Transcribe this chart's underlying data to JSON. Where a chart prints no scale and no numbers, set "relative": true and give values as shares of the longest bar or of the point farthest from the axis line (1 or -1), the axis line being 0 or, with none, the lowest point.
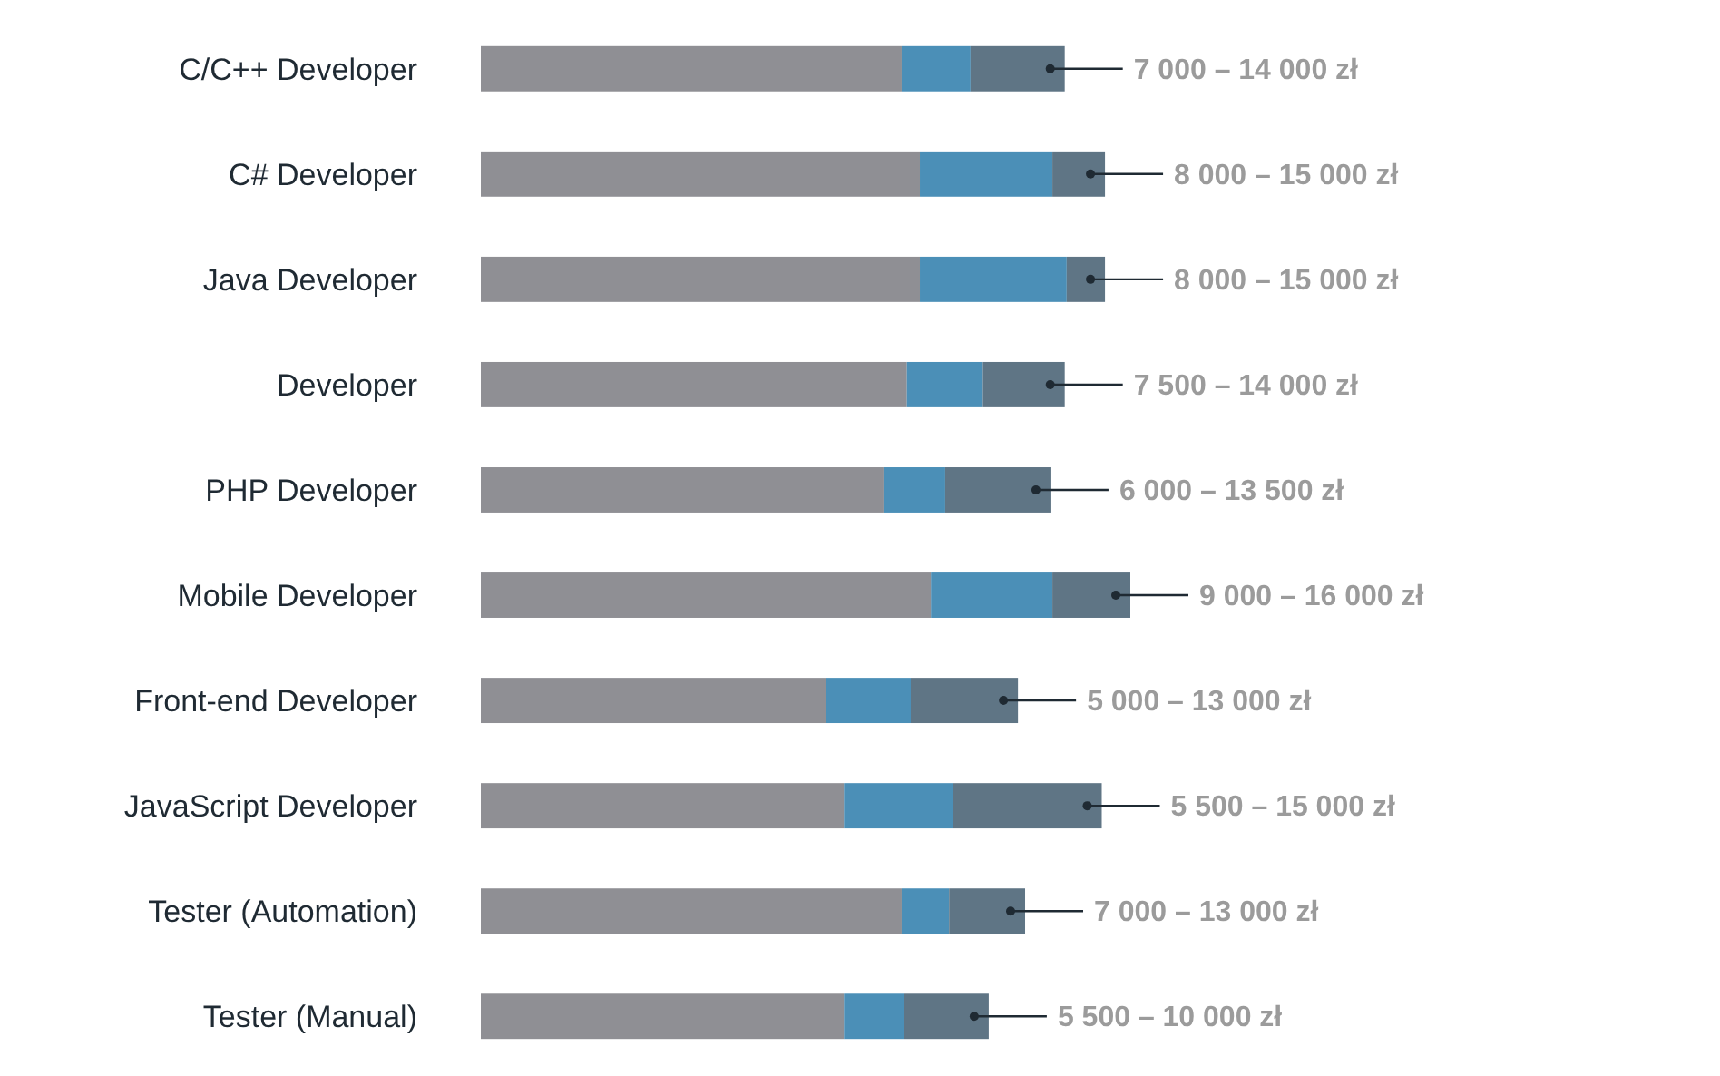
{
  "chart_data": {
    "type": "bar",
    "orientation": "horizontal",
    "stacked": true,
    "relative": true,
    "annotations": [
      "7 000 – 14 000 zł",
      "8 000 – 15 000 zł",
      "8 000 – 15 000 zł",
      "7 500 – 14 000 zł",
      "6 000 – 13 500 zł",
      "9 000 – 16 000 zł",
      "5 000 – 13 000 zł",
      "5 500 – 15 000 zł",
      "7 000 – 13 000 zł",
      "5 500 – 10 000 zł"
    ],
    "categories": [
      "C/C++ Developer",
      "C# Developer",
      "Java Developer",
      "Developer",
      "PHP Developer",
      "Mobile Developer",
      "Front-end Developer",
      "JavaScript Developer",
      "Tester (Automation)",
      "Tester (Manual)"
    ],
    "series": [
      {
        "color": "#8f8f94",
        "values": [
          0.648,
          0.676,
          0.676,
          0.656,
          0.62,
          0.693,
          0.531,
          0.559,
          0.648,
          0.559
        ]
      },
      {
        "color": "#4b8fb7",
        "values": [
          0.106,
          0.204,
          0.226,
          0.117,
          0.095,
          0.187,
          0.131,
          0.168,
          0.073,
          0.092
        ]
      },
      {
        "color": "#5f7585",
        "values": [
          0.145,
          0.081,
          0.059,
          0.126,
          0.162,
          0.12,
          0.165,
          0.229,
          0.117,
          0.131
        ]
      }
    ]
  }
}
